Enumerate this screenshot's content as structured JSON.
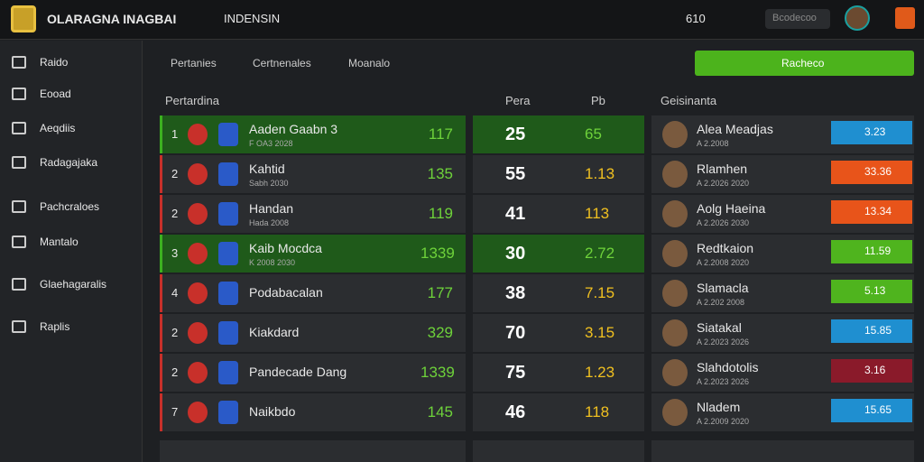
{
  "topbar": {
    "title": "OLARAGNA INAGBAI",
    "search_label": "INDENSIN",
    "count": "610",
    "search_placeholder": "Bcodecoo"
  },
  "sidebar": {
    "items": [
      "Raido",
      "Eooad",
      "Aeqdiis",
      "Radagajaka",
      "Pachcraloes",
      "Mantalo",
      "Glaehagaralis",
      "Raplis"
    ]
  },
  "tabs": [
    "Pertanies",
    "Certnenales",
    "Moanalo"
  ],
  "action_button": "Racheco",
  "columns": [
    "Pertardina",
    "Pera",
    "Pb",
    "Geisinanta"
  ],
  "rows": [
    {
      "rank": "1",
      "team": "Aaden Gaabn 3",
      "sub": "F OA3 2028",
      "score": "117",
      "pera": "25",
      "pb": "65",
      "player": "Alea Meadjas",
      "player_sub": "A 2.2008",
      "rating": "3.23",
      "rating_color": "#1f8fd0",
      "row_color": "#1f5a1a"
    },
    {
      "rank": "2",
      "team": "Kahtid",
      "sub": "Sabh 2030",
      "score": "135",
      "pera": "55",
      "pb": "1.13",
      "player": "Rlamhen",
      "player_sub": "A 2.2026 2020",
      "rating": "33.36",
      "rating_color": "#e8541a",
      "row_color": "#2b2d30"
    },
    {
      "rank": "2",
      "team": "Handan",
      "sub": "Hada 2008",
      "score": "119",
      "pera": "41",
      "pb": "113",
      "player": "Aolg Haeina",
      "player_sub": "A 2.2026 2030",
      "rating": "13.34",
      "rating_color": "#e8541a",
      "row_color": "#2b2d30"
    },
    {
      "rank": "3",
      "team": "Kaib Mocdca",
      "sub": "K 2008 2030",
      "score": "1339",
      "pera": "30",
      "pb": "2.72",
      "player": "Redtkaion",
      "player_sub": "A 2.2008 2020",
      "rating": "11.59",
      "rating_color": "#4fb41e",
      "row_color": "#1f5a1a"
    },
    {
      "rank": "4",
      "team": "Podabacalan",
      "sub": "",
      "score": "177",
      "pera": "38",
      "pb": "7.15",
      "player": "Slamacla",
      "player_sub": "A 2.202 2008",
      "rating": "5.13",
      "rating_color": "#4fb41e",
      "row_color": "#2b2d30"
    },
    {
      "rank": "2",
      "team": "Kiakdard",
      "sub": "",
      "score": "329",
      "pera": "70",
      "pb": "3.15",
      "player": "Siatakal",
      "player_sub": "A 2.2023 2026",
      "rating": "15.85",
      "rating_color": "#1f8fd0",
      "row_color": "#2b2d30"
    },
    {
      "rank": "2",
      "team": "Pandecade Dang",
      "sub": "",
      "score": "1339",
      "pera": "75",
      "pb": "1.23",
      "player": "Slahdotolis",
      "player_sub": "A 2.2023 2026",
      "rating": "3.16",
      "rating_color": "#8a1a2a",
      "row_color": "#2b2d30"
    },
    {
      "rank": "7",
      "team": "Naikbdo",
      "sub": "",
      "score": "145",
      "pera": "46",
      "pb": "118",
      "player": "Nladem",
      "player_sub": "A 2.2009 2020",
      "rating": "15.65",
      "rating_color": "#1f8fd0",
      "row_color": "#2b2d30"
    }
  ]
}
